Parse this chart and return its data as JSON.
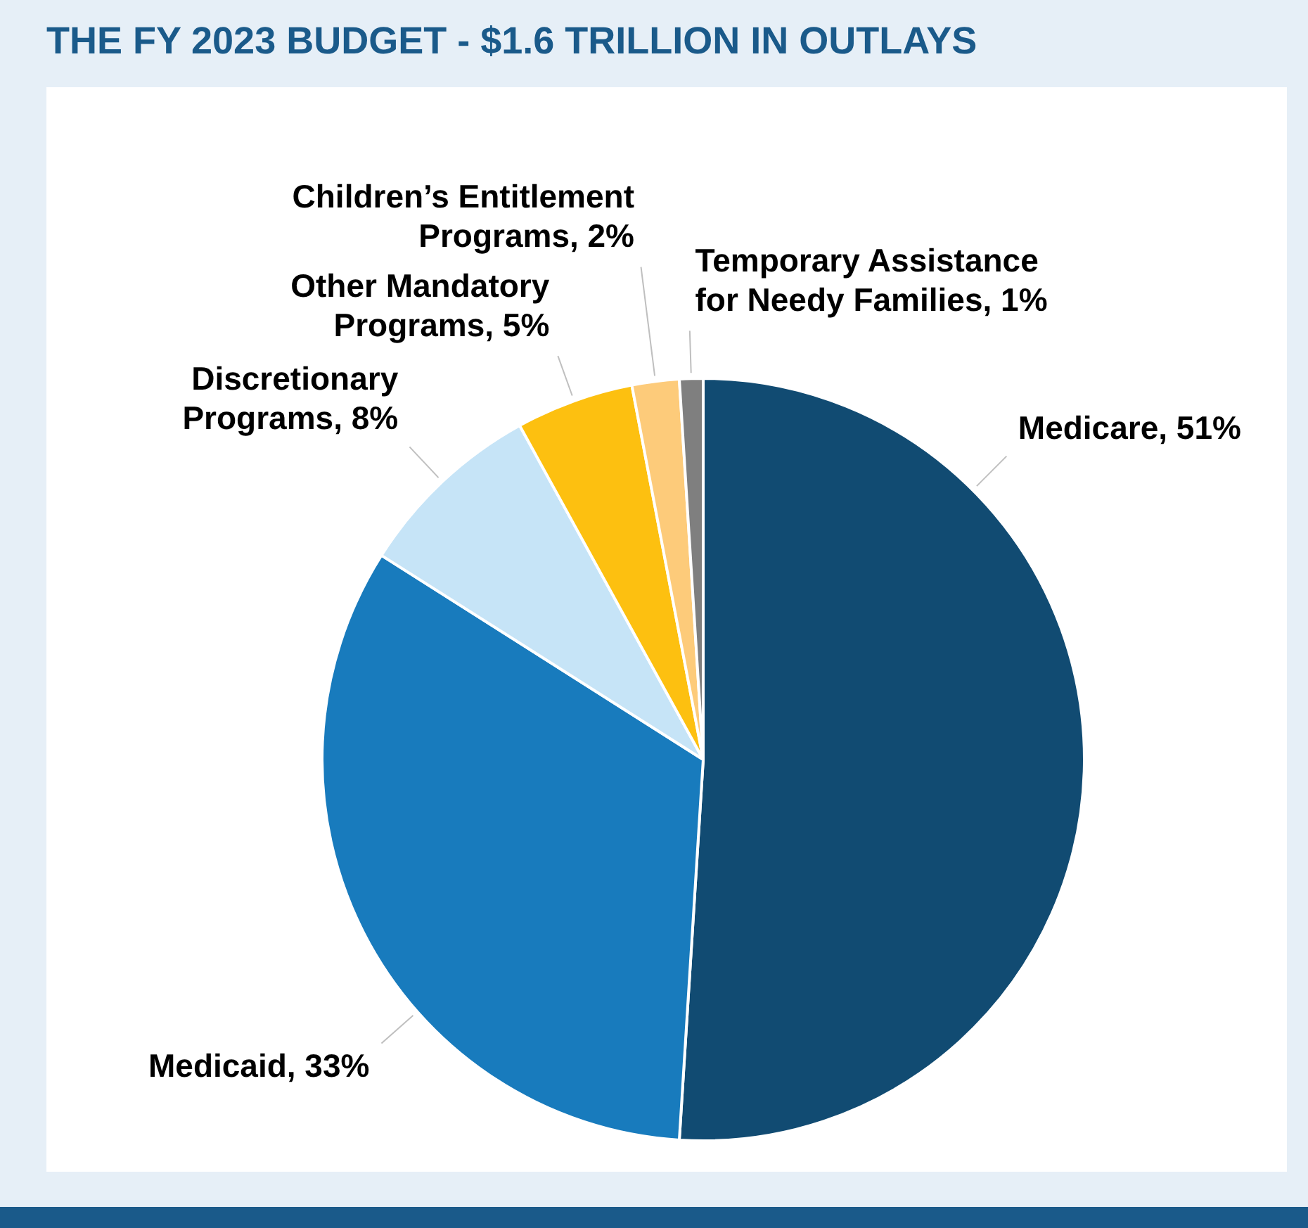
{
  "chart_data": {
    "type": "pie",
    "title": "THE FY 2023 BUDGET - $1.6 TRILLION IN OUTLAYS",
    "categories": [
      "Medicare",
      "Medicaid",
      "Discretionary Programs",
      "Other Mandatory Programs",
      "Children’s Entitlement Programs",
      "Temporary Assistance for Needy Families"
    ],
    "values": [
      51,
      33,
      8,
      5,
      2,
      1
    ],
    "value_labels": [
      "51%",
      "33%",
      "8%",
      "5%",
      "2%",
      "1%"
    ],
    "colors": [
      "#114b72",
      "#187bbd",
      "#c6e4f7",
      "#fdc010",
      "#fdcb7a",
      "#7f7f7f"
    ],
    "legend": false
  }
}
